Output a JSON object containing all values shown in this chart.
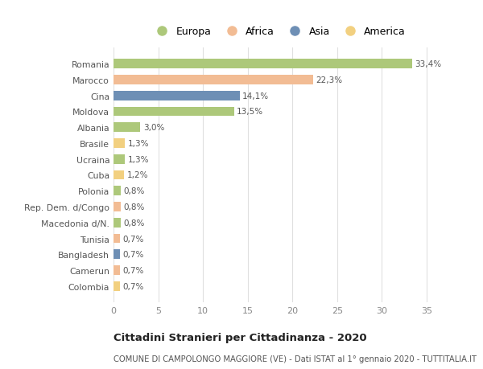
{
  "countries": [
    "Romania",
    "Marocco",
    "Cina",
    "Moldova",
    "Albania",
    "Brasile",
    "Ucraina",
    "Cuba",
    "Polonia",
    "Rep. Dem. d/Congo",
    "Macedonia d/N.",
    "Tunisia",
    "Bangladesh",
    "Camerun",
    "Colombia"
  ],
  "values": [
    33.4,
    22.3,
    14.1,
    13.5,
    3.0,
    1.3,
    1.3,
    1.2,
    0.8,
    0.8,
    0.8,
    0.7,
    0.7,
    0.7,
    0.7
  ],
  "labels": [
    "33,4%",
    "22,3%",
    "14,1%",
    "13,5%",
    "3,0%",
    "1,3%",
    "1,3%",
    "1,2%",
    "0,8%",
    "0,8%",
    "0,8%",
    "0,7%",
    "0,7%",
    "0,7%",
    "0,7%"
  ],
  "continents": [
    "Europa",
    "Africa",
    "Asia",
    "Europa",
    "Europa",
    "America",
    "Europa",
    "America",
    "Europa",
    "Africa",
    "Europa",
    "Africa",
    "Asia",
    "Africa",
    "America"
  ],
  "colors": {
    "Europa": "#adc87a",
    "Africa": "#f2bc94",
    "Asia": "#6e8fb5",
    "America": "#f2d080"
  },
  "legend_order": [
    "Europa",
    "Africa",
    "Asia",
    "America"
  ],
  "title": "Cittadini Stranieri per Cittadinanza - 2020",
  "subtitle": "COMUNE DI CAMPOLONGO MAGGIORE (VE) - Dati ISTAT al 1° gennaio 2020 - TUTTITALIA.IT",
  "xlim": [
    0,
    37
  ],
  "xticks": [
    0,
    5,
    10,
    15,
    20,
    25,
    30,
    35
  ],
  "background_color": "#ffffff",
  "grid_color": "#e0e0e0"
}
